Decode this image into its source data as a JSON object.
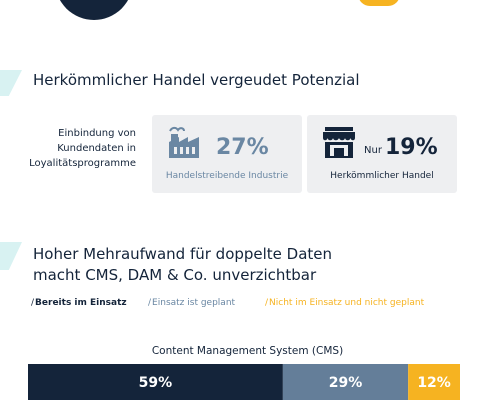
{
  "section1": {
    "title": "Herkömmlicher Handel vergeudet Potenzial",
    "description": [
      "Einbindung von",
      "Kundendaten in",
      "Loyalitätsprogramme"
    ],
    "boxes": [
      {
        "icon": "factory-icon",
        "prefix": "",
        "value": "27%",
        "caption": "Handelstreibende Industrie"
      },
      {
        "icon": "store-icon",
        "prefix": "Nur",
        "value": "19%",
        "caption": "Herkömmlicher Handel"
      }
    ]
  },
  "section2": {
    "title": "Hoher Mehraufwand für doppelte Daten macht CMS, DAM & Co. unverzichtbar"
  },
  "chart_data": {
    "type": "bar",
    "orientation": "horizontal-stacked",
    "title": "Content Management System (CMS)",
    "categories": [
      "Content Management System (CMS)"
    ],
    "series": [
      {
        "name": "Bereits im Einsatz",
        "values": [
          59
        ],
        "label": "59%",
        "color": "#14243a"
      },
      {
        "name": "Einsatz ist geplant",
        "values": [
          29
        ],
        "label": "29%",
        "color": "#647e99"
      },
      {
        "name": "Nicht im Einsatz und nicht geplant",
        "values": [
          12
        ],
        "label": "12%",
        "color": "#f6b321"
      }
    ],
    "legend_position": "top-left",
    "unit": "%"
  },
  "colors": {
    "navy": "#14243a",
    "slate": "#647e99",
    "yellow": "#f6b321",
    "teal": "#d8f2f2",
    "box_bg": "#eeeff1"
  }
}
